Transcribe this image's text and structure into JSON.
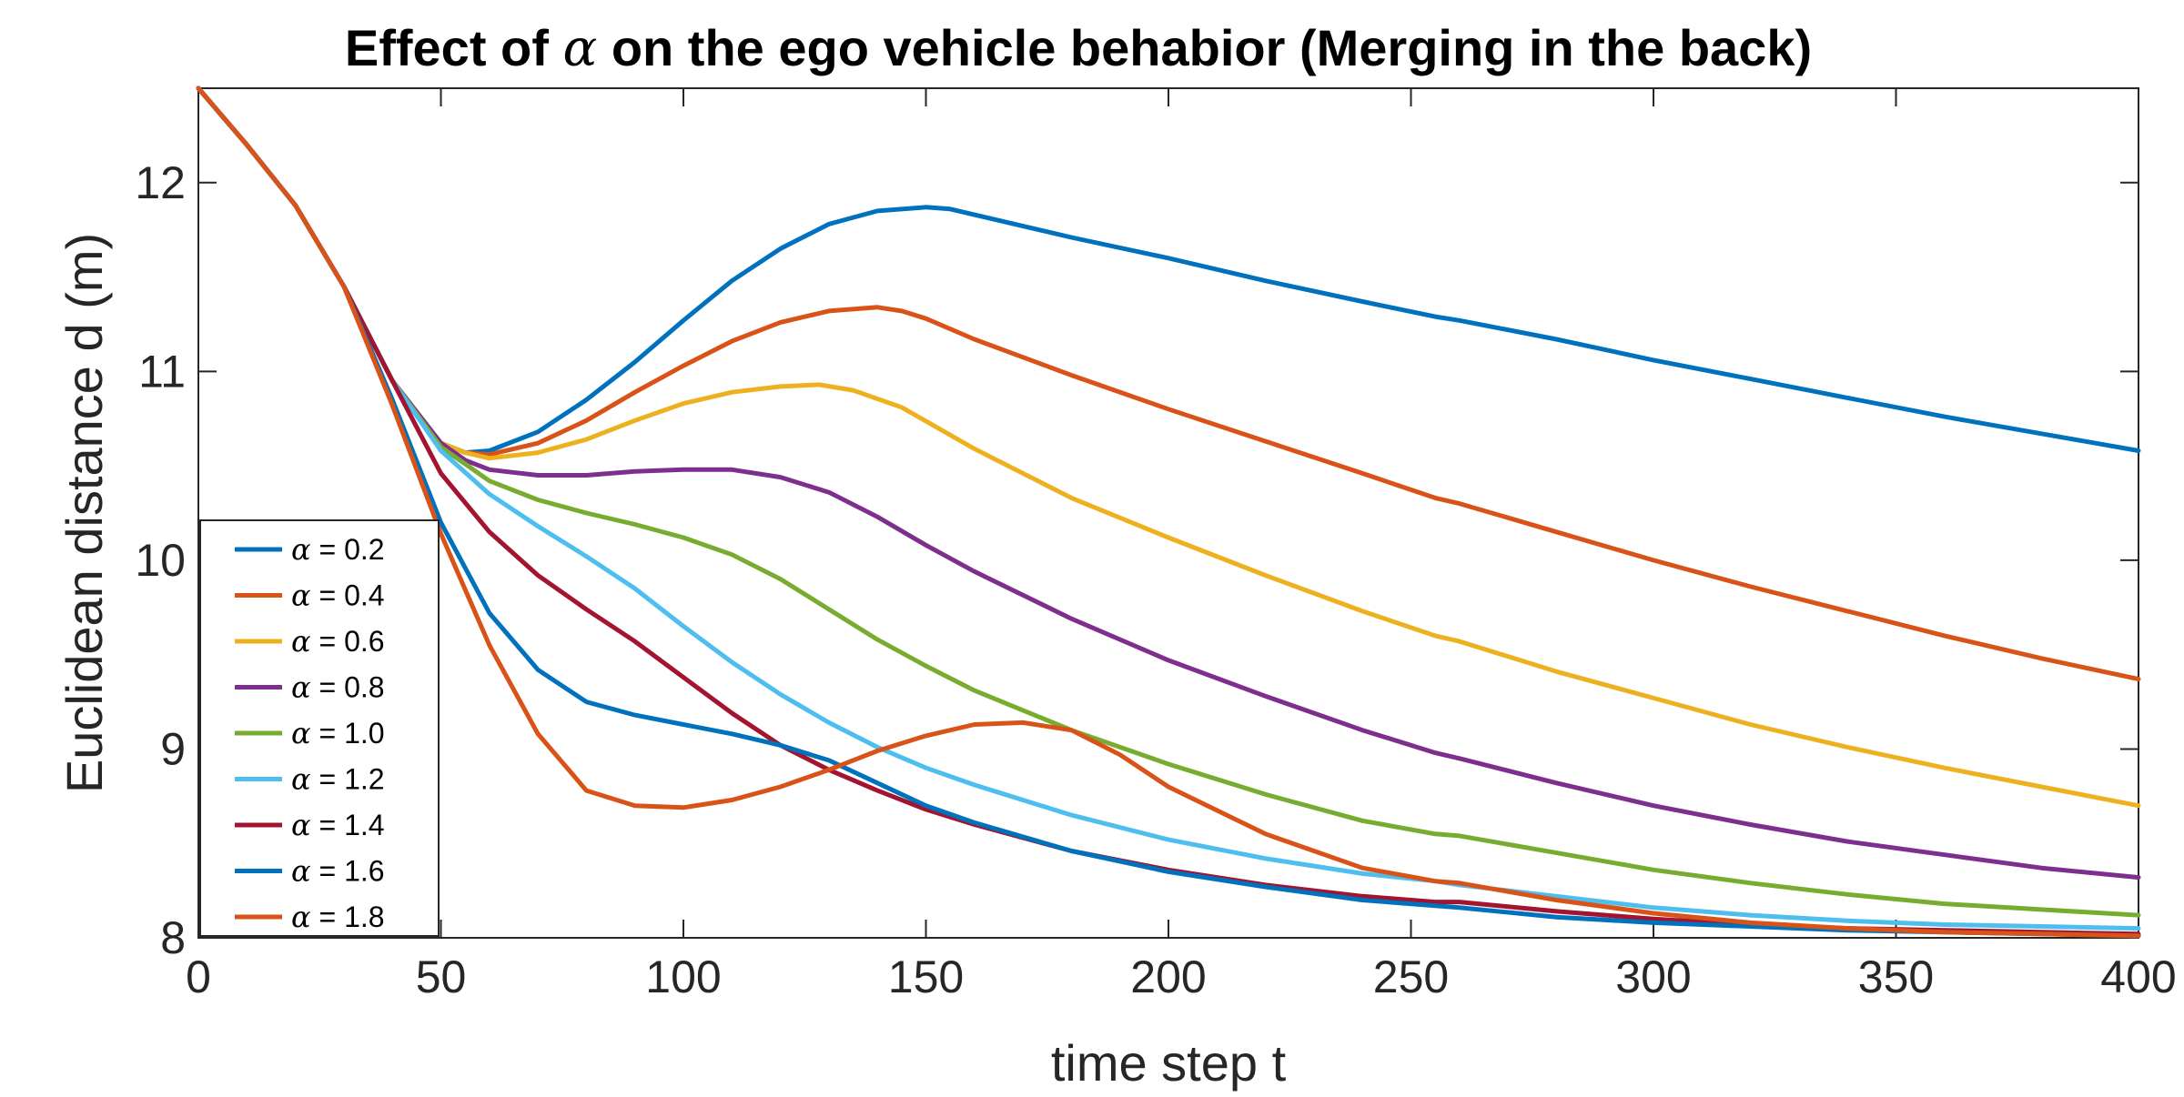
{
  "chart_data": {
    "type": "line",
    "title_prefix": "Effect of ",
    "title_symbol": "α",
    "title_suffix": " on the ego vehicle behabior (Merging in the back)",
    "xlabel": "time step t",
    "ylabel": "Euclidean distance d (m)",
    "xlim": [
      0,
      400
    ],
    "ylim": [
      8,
      12.5
    ],
    "xticks": [
      0,
      50,
      100,
      150,
      200,
      250,
      300,
      350,
      400
    ],
    "yticks": [
      8,
      9,
      10,
      11,
      12
    ],
    "grid": false,
    "legend_position": "bottom-left",
    "legend_symbol": "α",
    "series": [
      {
        "name": " = 0.2",
        "color": "#0072BD",
        "x": [
          0,
          10,
          20,
          30,
          40,
          50,
          55,
          60,
          70,
          80,
          90,
          100,
          110,
          120,
          130,
          140,
          150,
          155,
          160,
          180,
          200,
          220,
          240,
          255,
          260,
          280,
          300,
          320,
          340,
          360,
          380,
          400
        ],
        "y": [
          12.5,
          12.2,
          11.88,
          11.45,
          10.95,
          10.62,
          10.57,
          10.58,
          10.68,
          10.85,
          11.05,
          11.27,
          11.48,
          11.65,
          11.78,
          11.85,
          11.87,
          11.86,
          11.83,
          11.71,
          11.6,
          11.48,
          11.37,
          11.29,
          11.27,
          11.17,
          11.06,
          10.96,
          10.86,
          10.76,
          10.67,
          10.58
        ]
      },
      {
        "name": " = 0.4",
        "color": "#D95319",
        "x": [
          0,
          10,
          20,
          30,
          40,
          50,
          55,
          60,
          70,
          80,
          90,
          100,
          110,
          120,
          130,
          140,
          145,
          150,
          160,
          180,
          200,
          220,
          240,
          255,
          260,
          280,
          300,
          320,
          340,
          360,
          380,
          400
        ],
        "y": [
          12.5,
          12.2,
          11.88,
          11.45,
          10.95,
          10.62,
          10.57,
          10.56,
          10.62,
          10.74,
          10.89,
          11.03,
          11.16,
          11.26,
          11.32,
          11.34,
          11.32,
          11.28,
          11.17,
          10.98,
          10.8,
          10.63,
          10.46,
          10.33,
          10.3,
          10.15,
          10.0,
          9.86,
          9.73,
          9.6,
          9.48,
          9.37
        ]
      },
      {
        "name": " = 0.6",
        "color": "#EDB120",
        "x": [
          0,
          10,
          20,
          30,
          40,
          50,
          55,
          60,
          70,
          80,
          90,
          100,
          110,
          120,
          128,
          135,
          145,
          160,
          180,
          200,
          220,
          240,
          255,
          260,
          280,
          300,
          320,
          340,
          360,
          380,
          400
        ],
        "y": [
          12.5,
          12.2,
          11.88,
          11.45,
          10.95,
          10.62,
          10.57,
          10.54,
          10.57,
          10.64,
          10.74,
          10.83,
          10.89,
          10.92,
          10.93,
          10.9,
          10.81,
          10.59,
          10.33,
          10.12,
          9.92,
          9.73,
          9.6,
          9.57,
          9.41,
          9.27,
          9.13,
          9.01,
          8.9,
          8.8,
          8.7
        ]
      },
      {
        "name": " = 0.8",
        "color": "#7E2F8E",
        "x": [
          0,
          10,
          20,
          30,
          40,
          50,
          55,
          60,
          70,
          80,
          90,
          100,
          110,
          120,
          130,
          140,
          150,
          160,
          180,
          200,
          220,
          240,
          255,
          260,
          280,
          300,
          320,
          340,
          360,
          380,
          400
        ],
        "y": [
          12.5,
          12.2,
          11.88,
          11.45,
          10.95,
          10.62,
          10.53,
          10.48,
          10.45,
          10.45,
          10.47,
          10.48,
          10.48,
          10.44,
          10.36,
          10.23,
          10.08,
          9.94,
          9.69,
          9.47,
          9.28,
          9.1,
          8.98,
          8.95,
          8.82,
          8.7,
          8.6,
          8.51,
          8.44,
          8.37,
          8.32
        ]
      },
      {
        "name": " = 1.0",
        "color": "#77AC30",
        "x": [
          0,
          10,
          20,
          30,
          40,
          50,
          60,
          70,
          80,
          90,
          100,
          110,
          120,
          130,
          140,
          150,
          160,
          180,
          200,
          220,
          240,
          255,
          260,
          280,
          300,
          320,
          340,
          360,
          380,
          400
        ],
        "y": [
          12.5,
          12.2,
          11.88,
          11.45,
          10.95,
          10.6,
          10.42,
          10.32,
          10.25,
          10.19,
          10.12,
          10.03,
          9.9,
          9.74,
          9.58,
          9.44,
          9.31,
          9.1,
          8.92,
          8.76,
          8.62,
          8.55,
          8.54,
          8.45,
          8.36,
          8.29,
          8.23,
          8.18,
          8.15,
          8.12
        ]
      },
      {
        "name": " = 1.2",
        "color": "#4DBEEE",
        "x": [
          0,
          10,
          20,
          30,
          40,
          50,
          60,
          70,
          80,
          90,
          100,
          110,
          120,
          130,
          140,
          150,
          160,
          180,
          200,
          220,
          240,
          255,
          260,
          280,
          300,
          320,
          340,
          360,
          380,
          400
        ],
        "y": [
          12.5,
          12.2,
          11.88,
          11.45,
          10.95,
          10.58,
          10.35,
          10.18,
          10.02,
          9.85,
          9.65,
          9.46,
          9.29,
          9.14,
          9.01,
          8.9,
          8.81,
          8.65,
          8.52,
          8.42,
          8.34,
          8.3,
          8.28,
          8.22,
          8.16,
          8.12,
          8.09,
          8.07,
          8.06,
          8.05
        ]
      },
      {
        "name": " = 1.4",
        "color": "#A2142F",
        "x": [
          0,
          10,
          20,
          30,
          40,
          50,
          60,
          70,
          80,
          90,
          100,
          110,
          120,
          130,
          140,
          150,
          160,
          180,
          200,
          220,
          240,
          255,
          260,
          280,
          300,
          320,
          340,
          360,
          380,
          400
        ],
        "y": [
          12.5,
          12.2,
          11.88,
          11.45,
          10.95,
          10.46,
          10.15,
          9.92,
          9.74,
          9.57,
          9.38,
          9.19,
          9.02,
          8.89,
          8.78,
          8.68,
          8.6,
          8.46,
          8.36,
          8.28,
          8.22,
          8.19,
          8.19,
          8.14,
          8.1,
          8.07,
          8.05,
          8.04,
          8.03,
          8.02
        ]
      },
      {
        "name": " = 1.6",
        "color": "#0072BD",
        "x": [
          0,
          10,
          20,
          30,
          40,
          50,
          60,
          70,
          80,
          90,
          100,
          110,
          120,
          130,
          140,
          150,
          160,
          180,
          200,
          220,
          240,
          255,
          260,
          280,
          300,
          320,
          340,
          360,
          380,
          400
        ],
        "y": [
          12.5,
          12.2,
          11.88,
          11.45,
          10.85,
          10.2,
          9.72,
          9.42,
          9.25,
          9.18,
          9.13,
          9.08,
          9.02,
          8.94,
          8.82,
          8.7,
          8.61,
          8.46,
          8.35,
          8.27,
          8.2,
          8.17,
          8.16,
          8.11,
          8.08,
          8.06,
          8.04,
          8.03,
          8.02,
          8.01
        ]
      },
      {
        "name": " = 1.8",
        "color": "#D95319",
        "x": [
          0,
          10,
          20,
          30,
          40,
          50,
          60,
          70,
          80,
          90,
          100,
          110,
          120,
          130,
          140,
          150,
          160,
          170,
          180,
          190,
          200,
          220,
          240,
          255,
          260,
          280,
          300,
          320,
          340,
          360,
          380,
          400
        ],
        "y": [
          12.5,
          12.2,
          11.88,
          11.45,
          10.82,
          10.14,
          9.55,
          9.08,
          8.78,
          8.7,
          8.69,
          8.73,
          8.8,
          8.89,
          8.99,
          9.07,
          9.13,
          9.14,
          9.1,
          8.97,
          8.8,
          8.55,
          8.37,
          8.3,
          8.29,
          8.2,
          8.13,
          8.08,
          8.05,
          8.03,
          8.02,
          8.01
        ]
      }
    ]
  }
}
